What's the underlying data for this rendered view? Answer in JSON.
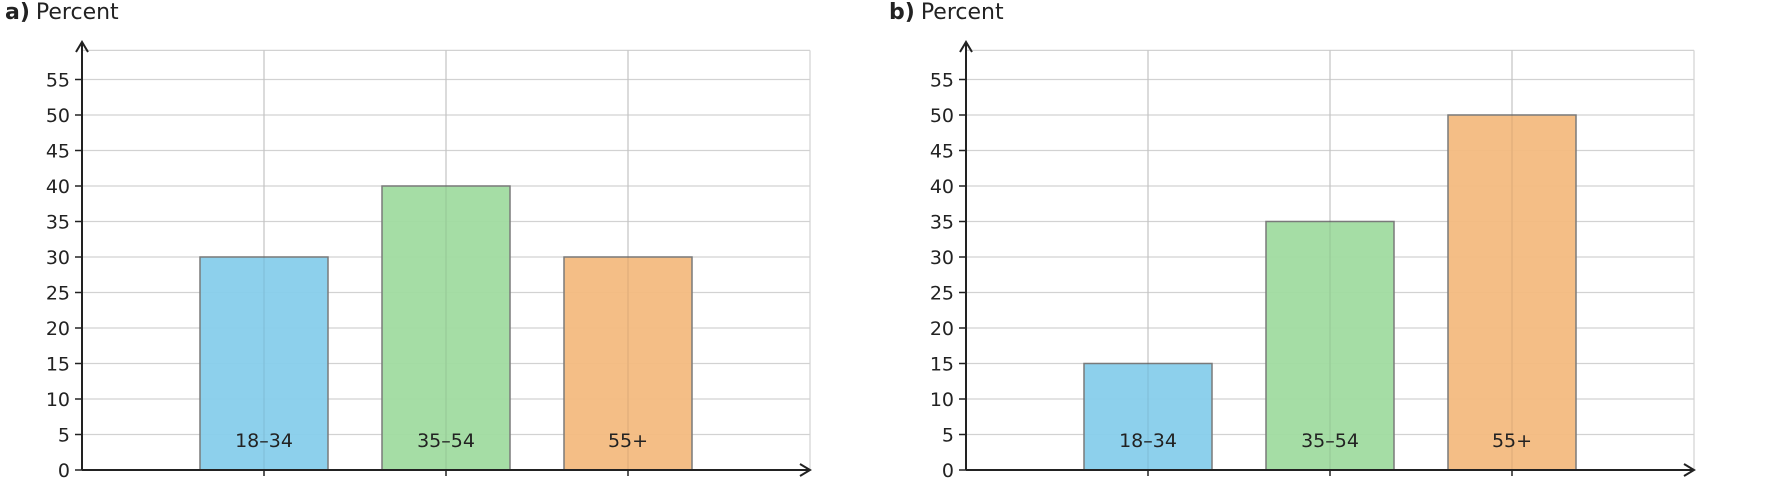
{
  "chart_data": [
    {
      "type": "bar",
      "panel_label": "a)",
      "ylabel": "Percent",
      "categories": [
        "18–34",
        "35–54",
        "55+"
      ],
      "values": [
        30,
        40,
        30
      ],
      "colors": [
        "#87ceeb",
        "#a0dba0",
        "#f3bb80"
      ],
      "yticks": [
        0,
        5,
        10,
        15,
        20,
        25,
        30,
        35,
        40,
        45,
        50,
        55
      ],
      "ylim": [
        0,
        60
      ],
      "grid": true
    },
    {
      "type": "bar",
      "panel_label": "b)",
      "ylabel": "Percent",
      "categories": [
        "18–34",
        "35–54",
        "55+"
      ],
      "values": [
        15,
        35,
        50
      ],
      "colors": [
        "#87ceeb",
        "#a0dba0",
        "#f3bb80"
      ],
      "yticks": [
        0,
        5,
        10,
        15,
        20,
        25,
        30,
        35,
        40,
        45,
        50,
        55
      ],
      "ylim": [
        0,
        60
      ],
      "grid": true
    }
  ]
}
